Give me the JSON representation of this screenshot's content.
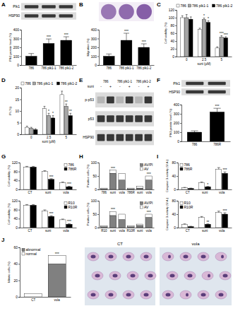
{
  "panels": [
    "A",
    "B",
    "C",
    "D",
    "E",
    "F",
    "G",
    "H",
    "I",
    "J"
  ],
  "blots": [
    {
      "rows": [
        "Plk1",
        "HSP90"
      ]
    },
    {
      "columns": [
        "786",
        "786 plk1-1",
        "786 plk1-2"
      ],
      "treatment": "suni",
      "treatment_values": [
        "-",
        "+",
        "-",
        "+",
        "-",
        "+"
      ],
      "rows": [
        "p-p53",
        "p53",
        "HSP90"
      ]
    },
    {
      "rows": [
        "Plk1",
        "HSP90"
      ]
    }
  ],
  "micrographs": [
    "CT",
    "vola"
  ],
  "chart_data": [
    {
      "type": "bar",
      "y_label": "Plk1 protein level (%)",
      "categories": [
        "786",
        "786 plk1-1",
        "786 plk1-2"
      ],
      "series": [
        {
          "color": "#000000",
          "values": [
            100,
            245,
            280
          ],
          "errors": [
            30,
            50,
            40
          ],
          "annotations": [
            null,
            "***",
            "***"
          ]
        }
      ],
      "ylim": [
        0,
        400
      ],
      "yticks": [
        0,
        100,
        200,
        300,
        400
      ]
    },
    {
      "type": "bar",
      "y_label": "Migration (%)",
      "categories": [
        "786",
        "786 plk1-1",
        "786 plk1-2"
      ],
      "series": [
        {
          "color": "#000000",
          "values": [
            100,
            280,
            200
          ],
          "errors": [
            25,
            80,
            40
          ],
          "annotations": [
            null,
            "***",
            "***"
          ]
        }
      ],
      "ylim": [
        0,
        400
      ],
      "yticks": [
        0,
        100,
        200,
        300,
        400
      ]
    },
    {
      "type": "bar",
      "y_label": "Cell viability (%)",
      "x_label": "suni (µM)",
      "categories": [
        "0",
        "2.5",
        "5"
      ],
      "legend": "top",
      "series": [
        {
          "name": "786",
          "color": "#ffffff",
          "values": [
            100,
            70,
            22
          ],
          "errors": [
            5,
            3,
            3
          ],
          "annotations": [
            null,
            null,
            null
          ]
        },
        {
          "name": "786 plk1-1",
          "color": "#a6a6a6",
          "values": [
            100,
            95,
            50
          ],
          "errors": [
            8,
            4,
            4
          ],
          "annotations": [
            null,
            "*",
            "***"
          ]
        },
        {
          "name": "786 plk1-2",
          "color": "#000000",
          "values": [
            96,
            88,
            48
          ],
          "errors": [
            6,
            4,
            3
          ],
          "annotations": [
            null,
            "*",
            "***"
          ]
        }
      ],
      "ylim": [
        0,
        120
      ],
      "yticks": [
        0,
        20,
        40,
        60,
        80,
        100,
        120
      ]
    },
    {
      "type": "bar",
      "y_label": "PI (%)",
      "x_label": "suni (µM)",
      "categories": [
        "0",
        "2.5",
        "5"
      ],
      "legend": "top",
      "series": [
        {
          "name": "786",
          "color": "#ffffff",
          "values": [
            3,
            11,
            17
          ],
          "errors": [
            0.5,
            1,
            1.5
          ],
          "annotations": [
            null,
            null,
            null
          ]
        },
        {
          "name": "786 plk1-1",
          "color": "#a6a6a6",
          "values": [
            2.5,
            8,
            12
          ],
          "errors": [
            0.5,
            1,
            1
          ],
          "annotations": [
            null,
            "*",
            "**"
          ]
        },
        {
          "name": "786 plk1-2",
          "color": "#000000",
          "values": [
            2,
            7,
            8
          ],
          "errors": [
            0.4,
            1,
            1
          ],
          "annotations": [
            null,
            "*",
            "**"
          ]
        }
      ],
      "ylim": [
        0,
        20
      ],
      "yticks": [
        0,
        5,
        10,
        15,
        20
      ]
    },
    {
      "type": "bar",
      "y_label": "Plk1 protein level (%)",
      "categories": [
        "786",
        "786R"
      ],
      "series": [
        {
          "color": "#000000",
          "values": [
            100,
            320
          ],
          "errors": [
            15,
            40
          ],
          "annotations": [
            null,
            "***"
          ]
        }
      ],
      "ylim": [
        0,
        400
      ],
      "yticks": [
        0,
        100,
        200,
        300,
        400
      ]
    },
    {
      "type": "bar",
      "y_label": "Cell viability (%)",
      "categories": [
        "CT",
        "suni",
        "vola"
      ],
      "legend": "top-right",
      "series": [
        {
          "name": "786",
          "color": "#ffffff",
          "values": [
            100,
            80,
            30
          ],
          "errors": [
            3,
            4,
            3
          ],
          "annotations": [
            null,
            null,
            null
          ]
        },
        {
          "name": "786R",
          "color": "#000000",
          "values": [
            100,
            45,
            12
          ],
          "errors": [
            3,
            3,
            2
          ],
          "annotations": [
            null,
            "***",
            "***"
          ]
        }
      ],
      "ylim": [
        0,
        120
      ],
      "yticks": [
        0,
        40,
        80,
        120
      ]
    },
    {
      "type": "bar",
      "y_label": "Cell viability (%)",
      "categories": [
        "CT",
        "suni",
        "vola"
      ],
      "legend": "top-right",
      "series": [
        {
          "name": "R10",
          "color": "#ffffff",
          "values": [
            100,
            75,
            35
          ],
          "errors": [
            3,
            4,
            3
          ],
          "annotations": [
            null,
            null,
            null
          ]
        },
        {
          "name": "R10R",
          "color": "#000000",
          "values": [
            100,
            50,
            15
          ],
          "errors": [
            3,
            3,
            2
          ],
          "annotations": [
            null,
            "***",
            "***"
          ]
        }
      ],
      "ylim": [
        0,
        120
      ],
      "yticks": [
        0,
        40,
        80,
        120
      ]
    },
    {
      "type": "bar",
      "stacked": true,
      "y_label": "Positive cells (%)",
      "categories": [
        "786",
        "suni",
        "vola",
        "786R",
        "suni",
        "vola"
      ],
      "legend": "top-right",
      "series": [
        {
          "name": "AV/PI",
          "color": "#808080",
          "values": [
            2,
            60,
            35,
            2,
            5,
            35
          ]
        },
        {
          "name": "AV",
          "color": "#ffffff",
          "values": [
            3,
            12,
            25,
            3,
            6,
            15
          ],
          "annotations": [
            null,
            "***",
            null,
            null,
            null,
            "***"
          ]
        }
      ],
      "ylim": [
        0,
        100
      ],
      "yticks": [
        0,
        50,
        100
      ]
    },
    {
      "type": "bar",
      "stacked": true,
      "y_label": "Positive cells (%)",
      "categories": [
        "R10",
        "suni",
        "vola",
        "R10R",
        "suni",
        "vola"
      ],
      "legend": "top-right",
      "series": [
        {
          "name": "AV/PI",
          "color": "#808080",
          "values": [
            3,
            45,
            30,
            3,
            8,
            38
          ]
        },
        {
          "name": "AV",
          "color": "#ffffff",
          "values": [
            4,
            15,
            20,
            3,
            5,
            12
          ],
          "annotations": [
            null,
            "***",
            null,
            null,
            null,
            "***"
          ]
        }
      ],
      "ylim": [
        0,
        100
      ],
      "yticks": [
        0,
        50,
        100
      ]
    },
    {
      "type": "bar",
      "y_label": "Caspase 3 activity (U.A.)",
      "categories": [
        "CT",
        "suni",
        "vola"
      ],
      "legend": "top-left",
      "series": [
        {
          "name": "786",
          "color": "#ffffff",
          "values": [
            5,
            20,
            60
          ],
          "errors": [
            1,
            2,
            5
          ],
          "annotations": [
            null,
            null,
            null
          ]
        },
        {
          "name": "786R",
          "color": "#000000",
          "values": [
            3,
            8,
            48
          ],
          "errors": [
            1,
            1,
            4
          ],
          "annotations": [
            null,
            "*",
            "***"
          ]
        }
      ],
      "ylim": [
        0,
        80
      ],
      "yticks": [
        0,
        40,
        80
      ]
    },
    {
      "type": "bar",
      "y_label": "Caspase 3 activity (U.A.)",
      "categories": [
        "CT",
        "suni",
        "vola"
      ],
      "legend": "top-left",
      "series": [
        {
          "name": "R10",
          "color": "#ffffff",
          "values": [
            10,
            30,
            45
          ],
          "errors": [
            1,
            3,
            4
          ],
          "annotations": [
            null,
            null,
            null
          ]
        },
        {
          "name": "R10R",
          "color": "#000000",
          "values": [
            3,
            10,
            40
          ],
          "errors": [
            1,
            1,
            4
          ],
          "annotations": [
            null,
            "**",
            "***"
          ]
        }
      ],
      "ylim": [
        0,
        80
      ],
      "yticks": [
        0,
        40,
        80
      ]
    },
    {
      "type": "bar",
      "stacked": true,
      "y_label": "Mitotic cells (%)",
      "categories": [
        "CT",
        "vola"
      ],
      "legend": "top-left",
      "series": [
        {
          "name": "abnormal",
          "color": "#808080",
          "values": [
            0,
            40
          ]
        },
        {
          "name": "normal",
          "color": "#ffffff",
          "values": [
            4,
            10
          ],
          "annotations": [
            null,
            "***"
          ]
        }
      ],
      "ylim": [
        0,
        60
      ],
      "yticks": [
        0,
        20,
        40,
        60
      ]
    }
  ]
}
